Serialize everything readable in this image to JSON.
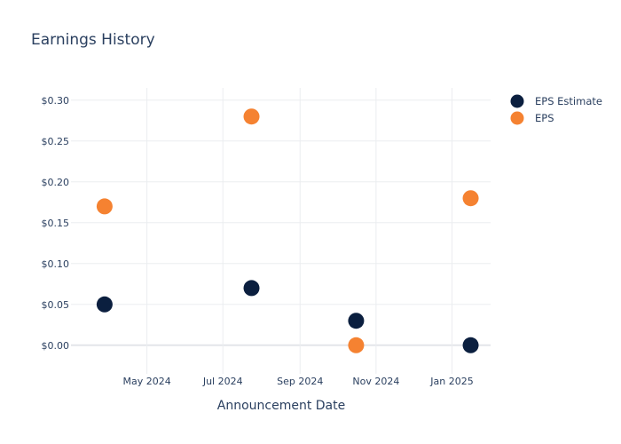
{
  "colors": {
    "eps_estimate": "#0b1f3f",
    "eps": "#f58231",
    "text": "#2a3f5f",
    "grid": "#ebedf0"
  },
  "chart_data": {
    "type": "scatter",
    "title": "Earnings History",
    "xlabel": "Announcement Date",
    "ylabel": "",
    "x": [
      "2024-03-28",
      "2024-07-24",
      "2024-10-16",
      "2025-01-16"
    ],
    "series": [
      {
        "name": "EPS Estimate",
        "values": [
          0.05,
          0.07,
          0.03,
          0.0
        ]
      },
      {
        "name": "EPS",
        "values": [
          0.17,
          0.28,
          0.0,
          0.18
        ]
      }
    ],
    "xlim": [
      "2024-03-01",
      "2025-02-01"
    ],
    "ylim": [
      -0.035,
      0.315
    ],
    "x_ticks": [
      {
        "date": "2024-05-01",
        "label": "May 2024"
      },
      {
        "date": "2024-07-01",
        "label": "Jul 2024"
      },
      {
        "date": "2024-09-01",
        "label": "Sep 2024"
      },
      {
        "date": "2024-11-01",
        "label": "Nov 2024"
      },
      {
        "date": "2025-01-01",
        "label": "Jan 2025"
      }
    ],
    "y_ticks": [
      {
        "value": 0.3,
        "label": "$0.30"
      },
      {
        "value": 0.25,
        "label": "$0.25"
      },
      {
        "value": 0.2,
        "label": "$0.20"
      },
      {
        "value": 0.15,
        "label": "$0.15"
      },
      {
        "value": 0.1,
        "label": "$0.10"
      },
      {
        "value": 0.05,
        "label": "$0.05"
      },
      {
        "value": 0.0,
        "label": "$0.00"
      }
    ],
    "grid": true,
    "legend": "top-right"
  }
}
